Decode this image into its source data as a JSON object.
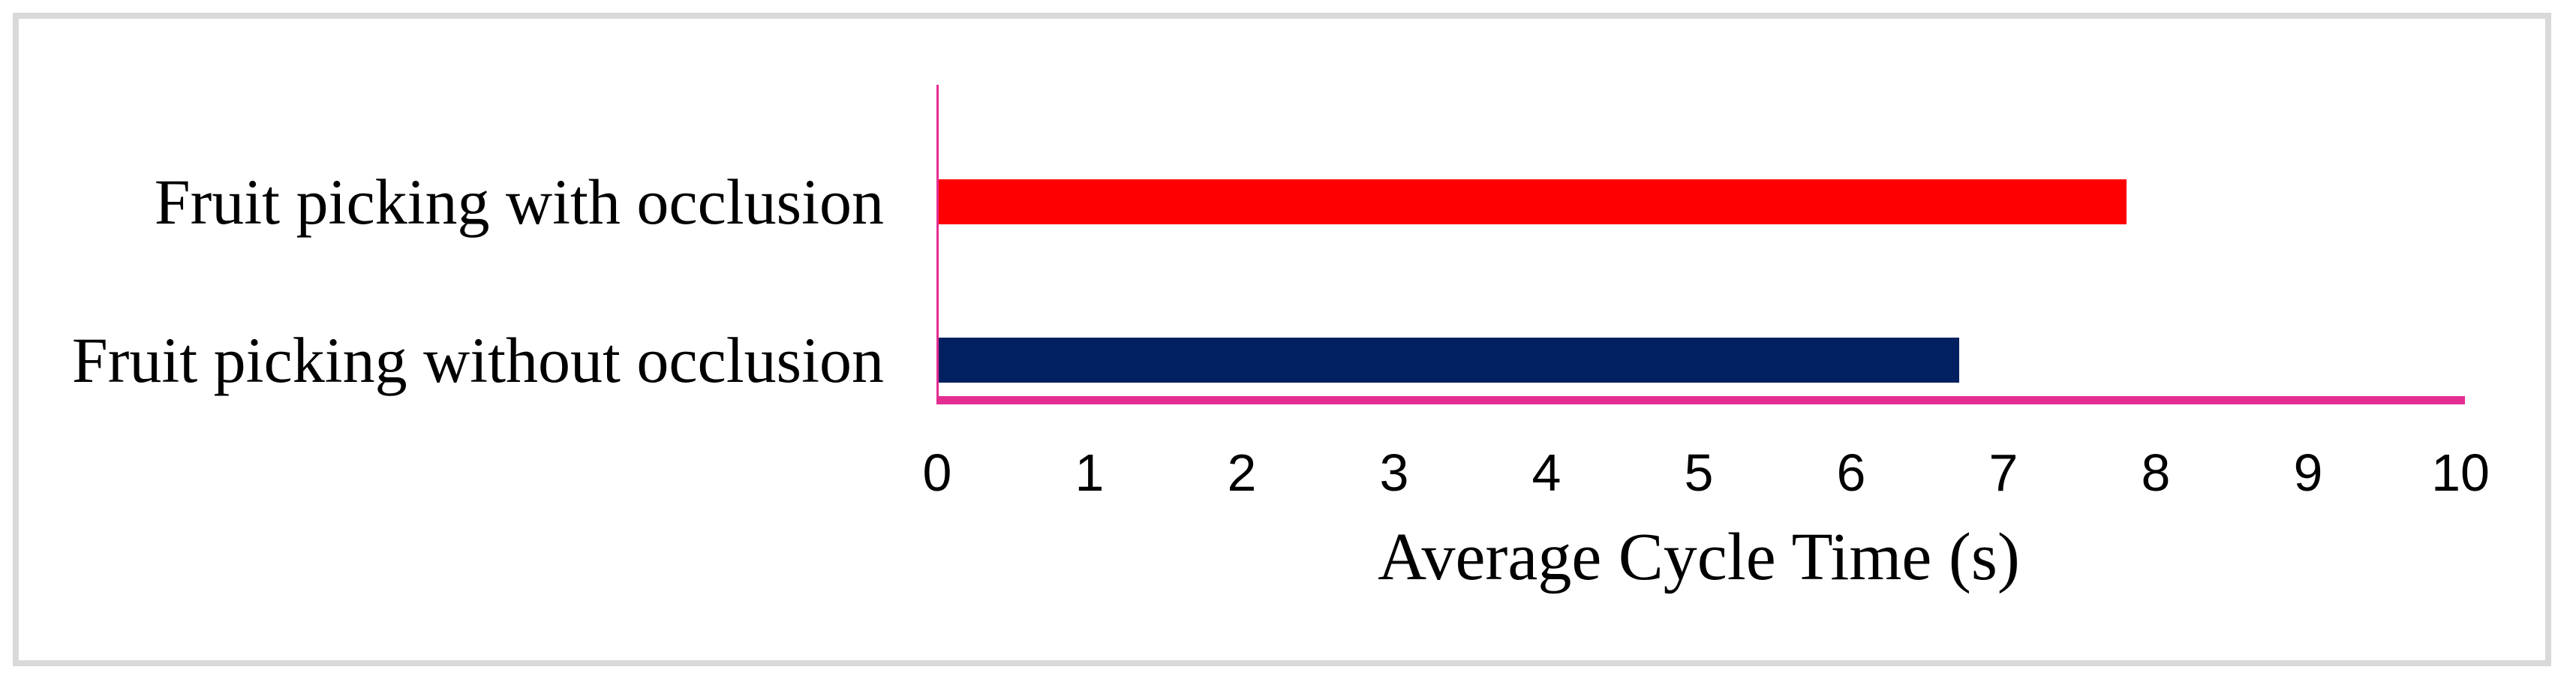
{
  "chart_data": {
    "type": "bar",
    "orientation": "horizontal",
    "title": "",
    "categories": [
      "Fruit picking with occlusion",
      "Fruit picking without occlusion"
    ],
    "series": [
      {
        "name": "Average Cycle Time",
        "values": [
          7.8,
          6.7
        ]
      }
    ],
    "bar_colors": [
      "#ff0000",
      "#002060"
    ],
    "xlabel": "Average Cycle Time (s)",
    "ylabel": "",
    "xlim": [
      0,
      10
    ],
    "xticks": [
      "0",
      "1",
      "2",
      "3",
      "4",
      "5",
      "6",
      "7",
      "8",
      "9",
      "10"
    ],
    "grid": false,
    "legend_position": "none",
    "axis_color": "#e32d91",
    "text_color": "#000000"
  },
  "frame": {
    "border_color": "#d9d9d9",
    "background_color": "#ffffff"
  }
}
